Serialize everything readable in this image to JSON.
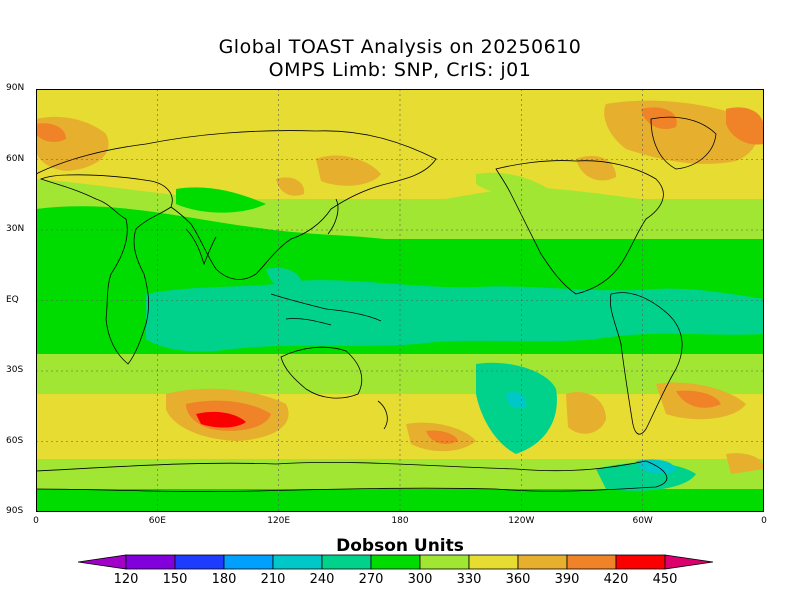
{
  "title_line1": "Global TOAST Analysis on 20250610",
  "title_line2": "OMPS Limb: SNP,  CrIS: j01",
  "lat_labels": [
    "90N",
    "60N",
    "30N",
    "EQ",
    "30S",
    "60S",
    "90S"
  ],
  "lon_labels": [
    "0",
    "60E",
    "120E",
    "180",
    "120W",
    "60W",
    "0"
  ],
  "legend": {
    "title": "Dobson Units",
    "labels": [
      "120",
      "150",
      "180",
      "210",
      "240",
      "270",
      "300",
      "330",
      "360",
      "390",
      "420",
      "450"
    ],
    "colors": [
      "#a000c8",
      "#8200dc",
      "#1e3cff",
      "#00a0ff",
      "#00c8c8",
      "#00d28c",
      "#00dc00",
      "#a0e632",
      "#e6dc32",
      "#e6af2d",
      "#f08228",
      "#fa0000",
      "#dc006e"
    ]
  },
  "chart_data": {
    "type": "heatmap",
    "title": "Global TOAST Analysis on 20250610",
    "subtitle": "OMPS Limb: SNP,  CrIS: j01",
    "unit": "Dobson Units",
    "x_range": [
      "0",
      "0"
    ],
    "y_range": [
      "90S",
      "90N"
    ],
    "grid": true,
    "contour_levels": [
      120,
      150,
      180,
      210,
      240,
      270,
      300,
      330,
      360,
      390,
      420,
      450
    ],
    "zonal_bands": [
      {
        "lat": [
          70,
          90
        ],
        "du": 345
      },
      {
        "lat": [
          45,
          70
        ],
        "du": 360
      },
      {
        "lat": [
          25,
          45
        ],
        "du": 315
      },
      {
        "lat": [
          -10,
          25
        ],
        "du": 285
      },
      {
        "lat": [
          -30,
          -10
        ],
        "du": 275
      },
      {
        "lat": [
          -45,
          -30
        ],
        "du": 320
      },
      {
        "lat": [
          -65,
          -45
        ],
        "du": 350
      },
      {
        "lat": [
          -80,
          -65
        ],
        "du": 320
      },
      {
        "lat": [
          -90,
          -80
        ],
        "du": 300
      }
    ],
    "features": [
      {
        "lat": -50,
        "lon": 93,
        "du": 430
      },
      {
        "lat": 70,
        "lon": -80,
        "du": 395
      },
      {
        "lat": -48,
        "lon": -65,
        "du": 275
      }
    ]
  }
}
